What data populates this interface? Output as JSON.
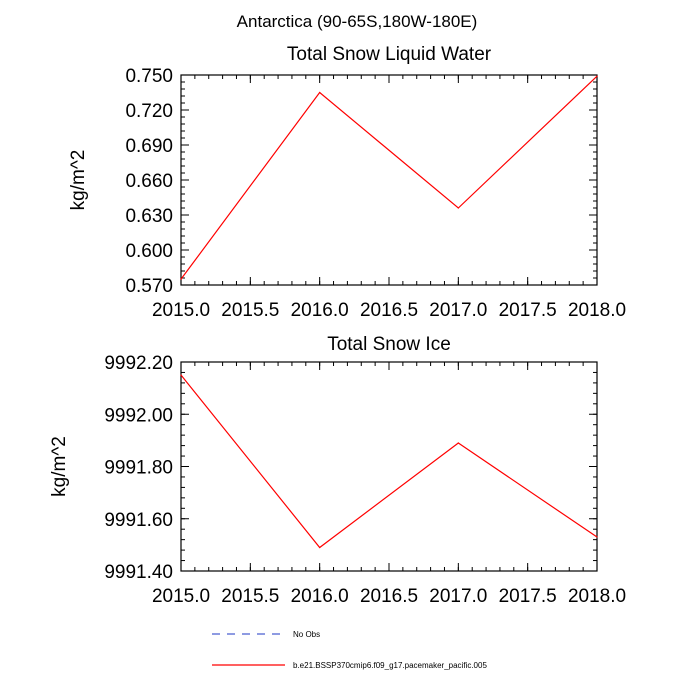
{
  "page_title": "Antarctica (90-65S,180W-180E)",
  "colors": {
    "model_line": "#ff0000",
    "obs_line": "#4b5fd1",
    "axis": "#000000"
  },
  "legend": {
    "obs_label": "No Obs",
    "model_label": "b.e21.BSSP370cmip6.f09_g17.pacemaker_pacific.005"
  },
  "chart_data": [
    {
      "type": "line",
      "title": "Total Snow Liquid Water",
      "xlabel": "",
      "ylabel": "kg/m^2",
      "xlim": [
        2015.0,
        2018.0
      ],
      "ylim": [
        0.57,
        0.75
      ],
      "x_ticks": [
        "2015.0",
        "2015.5",
        "2016.0",
        "2016.5",
        "2017.0",
        "2017.5",
        "2018.0"
      ],
      "y_ticks": [
        "0.570",
        "0.600",
        "0.630",
        "0.660",
        "0.690",
        "0.720",
        "0.750"
      ],
      "series": [
        {
          "x": [
            2015.0,
            2016.0,
            2017.0,
            2018.0
          ],
          "values": [
            0.575,
            0.735,
            0.636,
            0.749
          ]
        }
      ]
    },
    {
      "type": "line",
      "title": "Total Snow Ice",
      "xlabel": "",
      "ylabel": "kg/m^2",
      "xlim": [
        2015.0,
        2018.0
      ],
      "ylim": [
        9991.4,
        9992.2
      ],
      "x_ticks": [
        "2015.0",
        "2015.5",
        "2016.0",
        "2016.5",
        "2017.0",
        "2017.5",
        "2018.0"
      ],
      "y_ticks": [
        "9991.40",
        "9991.60",
        "9991.80",
        "9992.00",
        "9992.20"
      ],
      "series": [
        {
          "x": [
            2015.0,
            2016.0,
            2017.0,
            2018.0
          ],
          "values": [
            9992.15,
            9991.49,
            9991.89,
            9991.53
          ]
        }
      ]
    }
  ]
}
